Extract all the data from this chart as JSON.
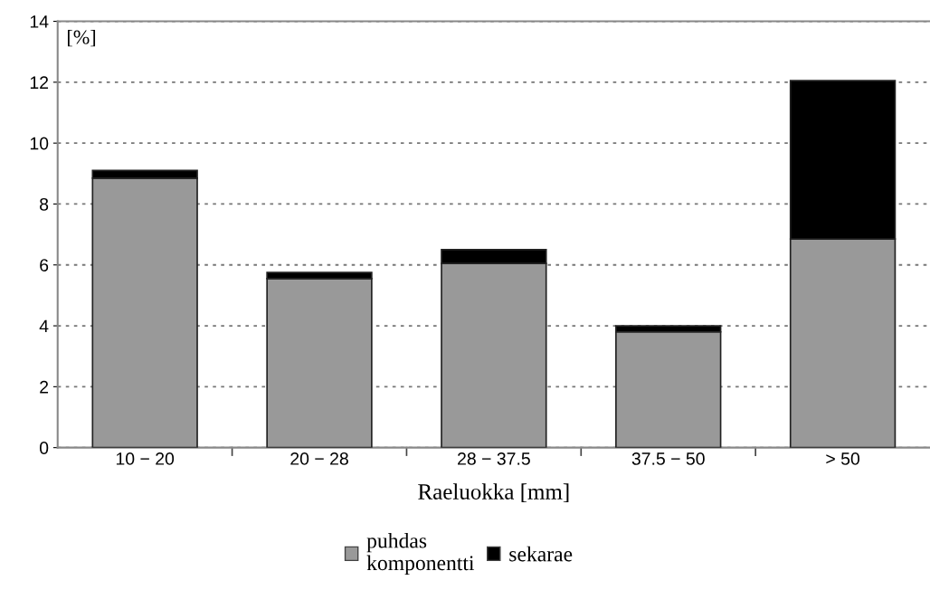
{
  "chart_data": {
    "type": "bar",
    "stacked": true,
    "ylabel": "[%]",
    "xlabel": "Raeluokka [mm]",
    "categories": [
      "10 − 20",
      "20 − 28",
      "28 − 37.5",
      "37.5 − 50",
      "> 50"
    ],
    "series": [
      {
        "name": "puhdas\nkomponentti",
        "color": "#999999",
        "values": [
          8.85,
          5.55,
          6.05,
          3.8,
          6.85
        ]
      },
      {
        "name": "sekarae",
        "color": "#000000",
        "values": [
          0.25,
          0.2,
          0.45,
          0.2,
          5.2
        ]
      }
    ],
    "ylim": [
      0,
      14
    ],
    "yticks": [
      0,
      2,
      4,
      6,
      8,
      10,
      12,
      14
    ],
    "grid": "y",
    "legend": "bottom"
  }
}
